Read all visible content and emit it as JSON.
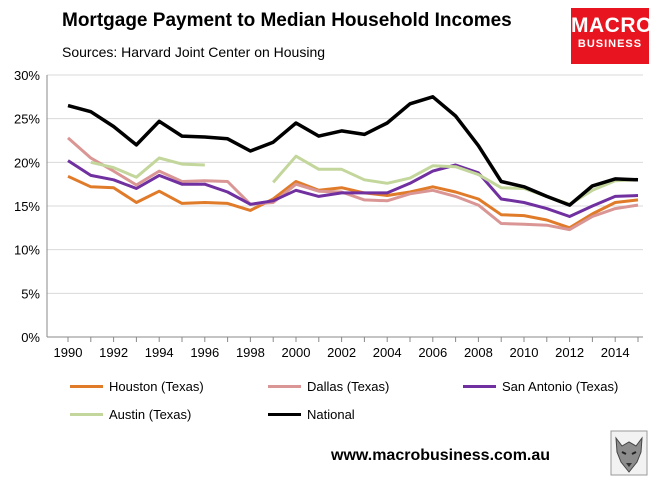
{
  "header": {
    "title": "Mortgage Payment to Median Household Incomes",
    "subtitle": "Sources: Harvard Joint Center on Housing"
  },
  "logo": {
    "line1": "MACRO",
    "line2": "BUSINESS"
  },
  "footer": {
    "website": "www.macrobusiness.com.au"
  },
  "chart_data": {
    "type": "line",
    "title": "Mortgage Payment to Median Household Incomes",
    "subtitle": "Sources: Harvard Joint Center on Housing",
    "xlabel": "",
    "ylabel": "",
    "x": [
      1990,
      1991,
      1992,
      1993,
      1994,
      1995,
      1996,
      1997,
      1998,
      1999,
      2000,
      2001,
      2002,
      2003,
      2004,
      2005,
      2006,
      2007,
      2008,
      2009,
      2010,
      2011,
      2012,
      2013,
      2014,
      2015
    ],
    "xticks": [
      "1990",
      "1992",
      "1994",
      "1996",
      "1998",
      "2000",
      "2002",
      "2004",
      "2006",
      "2008",
      "2010",
      "2012",
      "2014"
    ],
    "yticks": [
      "0%",
      "5%",
      "10%",
      "15%",
      "20%",
      "25%",
      "30%"
    ],
    "ylim": [
      0,
      30
    ],
    "xlim": [
      1990,
      2015
    ],
    "grid": "horizontal",
    "legend_position": "bottom",
    "series": [
      {
        "name": "Houston (Texas)",
        "color": "#e07b2a",
        "values": [
          18.4,
          17.2,
          17.1,
          15.4,
          16.7,
          15.3,
          15.4,
          15.3,
          14.5,
          15.8,
          17.8,
          16.8,
          17.1,
          16.5,
          16.2,
          16.6,
          17.2,
          16.6,
          15.8,
          14.0,
          13.9,
          13.4,
          12.5,
          14.1,
          15.4,
          15.7
        ]
      },
      {
        "name": "Dallas (Texas)",
        "color": "#d99694",
        "values": [
          22.8,
          20.5,
          19.0,
          17.4,
          19.0,
          17.8,
          17.9,
          17.8,
          15.2,
          15.4,
          17.5,
          16.7,
          16.6,
          15.7,
          15.6,
          16.4,
          16.8,
          16.1,
          15.1,
          13.0,
          12.9,
          12.8,
          12.3,
          13.8,
          14.7,
          15.1
        ]
      },
      {
        "name": "San Antonio (Texas)",
        "color": "#7030a0",
        "values": [
          20.2,
          18.5,
          18.0,
          17.0,
          18.5,
          17.5,
          17.5,
          16.6,
          15.2,
          15.6,
          16.8,
          16.1,
          16.5,
          16.5,
          16.5,
          17.6,
          19.0,
          19.7,
          18.8,
          15.8,
          15.4,
          14.7,
          13.8,
          15.0,
          16.1,
          16.2
        ]
      },
      {
        "name": "Austin (Texas)",
        "color": "#c3d69b",
        "values": [
          null,
          20.0,
          19.4,
          18.3,
          20.5,
          19.8,
          19.7,
          null,
          null,
          17.7,
          20.7,
          19.2,
          19.2,
          18.0,
          17.6,
          18.2,
          19.6,
          19.5,
          18.6,
          17.1,
          17.0,
          16.1,
          15.2,
          16.8,
          17.9,
          18.0
        ]
      },
      {
        "name": "National",
        "color": "#000000",
        "values": [
          26.5,
          25.8,
          24.1,
          22.0,
          24.7,
          23.0,
          22.9,
          22.7,
          21.3,
          22.3,
          24.5,
          23.0,
          23.6,
          23.2,
          24.5,
          26.7,
          27.5,
          25.3,
          21.9,
          17.8,
          17.2,
          16.1,
          15.1,
          17.3,
          18.1,
          18.0
        ]
      }
    ]
  }
}
